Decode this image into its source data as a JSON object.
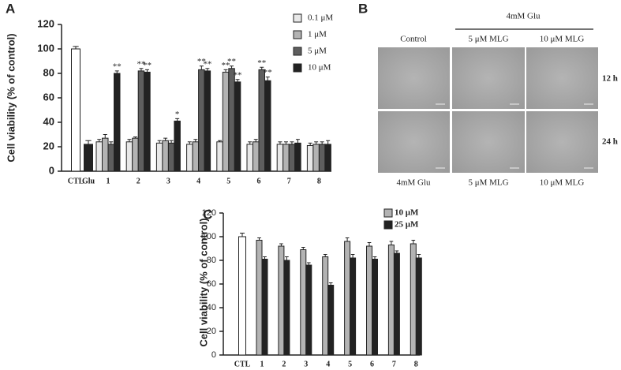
{
  "chart_data": [
    {
      "type": "bar",
      "panel": "A",
      "ylabel": "Cell viability (% of control)",
      "ylim": [
        0,
        120
      ],
      "yticks": [
        0,
        20,
        40,
        60,
        80,
        100,
        120
      ],
      "control_bars": {
        "categories": [
          "CTL",
          "Glu"
        ],
        "values": [
          100,
          22
        ],
        "errors": [
          2,
          3
        ],
        "colors": [
          "#ffffff",
          "#222222"
        ]
      },
      "categories": [
        "1",
        "2",
        "3",
        "4",
        "5",
        "6",
        "7",
        "8"
      ],
      "series": [
        {
          "name": "0.1 μM",
          "color": "#e8e8e8",
          "values": [
            24,
            24,
            23,
            22,
            24,
            22,
            22,
            21
          ],
          "errors": [
            2,
            2,
            2,
            2,
            1,
            2,
            2,
            2
          ],
          "labels": [
            null,
            null,
            null,
            null,
            null,
            null,
            null,
            null
          ]
        },
        {
          "name": "1 μM",
          "color": "#b3b3b3",
          "values": [
            27,
            27,
            25,
            24,
            81,
            24,
            22,
            22
          ],
          "errors": [
            3,
            1,
            2,
            2,
            2,
            2,
            2,
            2
          ],
          "labels": [
            null,
            null,
            null,
            null,
            "**",
            null,
            null,
            null
          ]
        },
        {
          "name": "5 μM",
          "color": "#5e5e5e",
          "values": [
            22,
            82,
            23,
            83,
            84,
            83,
            22,
            22
          ],
          "errors": [
            2,
            2,
            2,
            3,
            2,
            2,
            2,
            2
          ],
          "labels": [
            null,
            "**",
            null,
            "**",
            "**",
            "**",
            null,
            null
          ]
        },
        {
          "name": "10 μM",
          "color": "#222222",
          "values": [
            80,
            81,
            41,
            82,
            73,
            74,
            23,
            22
          ],
          "errors": [
            2,
            2,
            2,
            2,
            2,
            3,
            3,
            3
          ],
          "labels": [
            "**",
            "**",
            "*",
            "**",
            "**",
            "**",
            null,
            null
          ]
        }
      ]
    },
    {
      "type": "bar",
      "panel": "C",
      "ylabel": "Cell viability (% of control)",
      "ylim": [
        0,
        120
      ],
      "yticks": [
        0,
        20,
        40,
        60,
        80,
        100,
        120
      ],
      "control_bars": {
        "categories": [
          "CTL"
        ],
        "values": [
          100
        ],
        "errors": [
          3
        ],
        "colors": [
          "#ffffff"
        ]
      },
      "categories": [
        "1",
        "2",
        "3",
        "4",
        "5",
        "6",
        "7",
        "8"
      ],
      "series": [
        {
          "name": "10 μM",
          "color": "#b3b3b3",
          "values": [
            97,
            92,
            89,
            83,
            96,
            92,
            93,
            94
          ],
          "errors": [
            2,
            2,
            2,
            2,
            3,
            3,
            3,
            3
          ]
        },
        {
          "name": "25 μM",
          "color": "#222222",
          "values": [
            81,
            80,
            76,
            59,
            82,
            81,
            86,
            82
          ],
          "errors": [
            2,
            3,
            2,
            2,
            3,
            2,
            2,
            3
          ]
        }
      ]
    }
  ],
  "panel_b": {
    "panel": "B",
    "header": "4mM Glu",
    "top_labels": [
      "Control",
      "5 μM MLG",
      "10 μM MLG"
    ],
    "row_labels": [
      "12 h",
      "24 h"
    ],
    "bottom_labels": [
      "4mM Glu",
      "5 μM MLG",
      "10 μM MLG"
    ]
  }
}
